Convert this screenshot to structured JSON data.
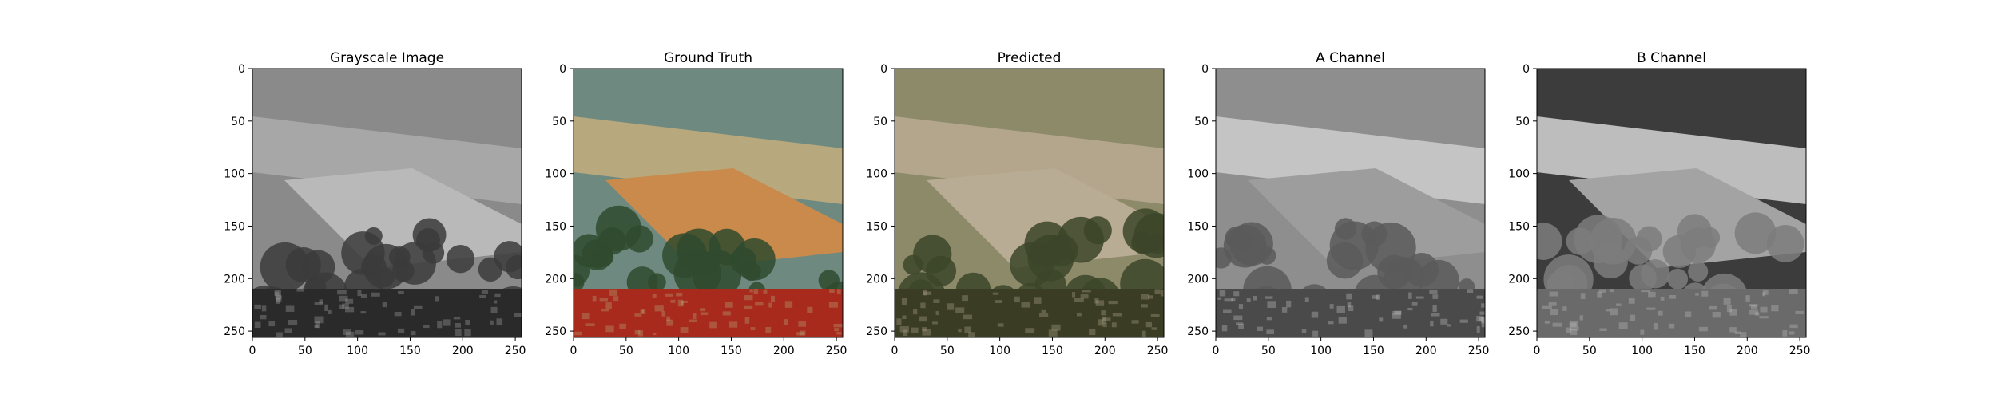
{
  "figure": {
    "background": "#ffffff",
    "panel_titles": [
      "Grayscale Image",
      "Ground Truth",
      "Predicted",
      "A Channel",
      "B Channel"
    ]
  },
  "chart_data": [
    {
      "type": "image",
      "title": "Grayscale Image",
      "xlabel": "",
      "ylabel": "",
      "xlim": [
        0,
        256
      ],
      "ylim": [
        256,
        0
      ],
      "xticks": [
        0,
        50,
        100,
        150,
        200,
        250
      ],
      "yticks": [
        0,
        50,
        100,
        150,
        200,
        250
      ],
      "content": "grayscale photo of a vineyard hillside",
      "colors": {
        "sky": "#8a8a8a",
        "hill": "#a7a7a7",
        "field": "#b9b9b9",
        "trees": "#3b3b3b",
        "foreground": "#2a2a2a"
      }
    },
    {
      "type": "image",
      "title": "Ground Truth",
      "xlabel": "",
      "ylabel": "",
      "xlim": [
        0,
        256
      ],
      "ylim": [
        256,
        0
      ],
      "xticks": [
        0,
        50,
        100,
        150,
        200,
        250
      ],
      "yticks": [
        0,
        50,
        100,
        150,
        200,
        250
      ],
      "content": "color photo of a vineyard hillside with red autumn vines",
      "colors": {
        "sky": "#6e8a80",
        "hill": "#b7a87e",
        "field": "#c98a4b",
        "trees": "#2f4a2e",
        "foreground": "#a82a1c"
      }
    },
    {
      "type": "image",
      "title": "Predicted",
      "xlabel": "",
      "ylabel": "",
      "xlim": [
        0,
        256
      ],
      "ylim": [
        256,
        0
      ],
      "xticks": [
        0,
        50,
        100,
        150,
        200,
        250
      ],
      "yticks": [
        0,
        50,
        100,
        150,
        200,
        250
      ],
      "content": "predicted colorization of the vineyard photo, muted sepia-green tones",
      "colors": {
        "sky": "#8d8a6a",
        "hill": "#b3a68c",
        "field": "#b8ac94",
        "trees": "#3c4529",
        "foreground": "#3a3d24"
      }
    },
    {
      "type": "image",
      "title": "A Channel",
      "xlabel": "",
      "ylabel": "",
      "xlim": [
        0,
        256
      ],
      "ylim": [
        256,
        0
      ],
      "xticks": [
        0,
        50,
        100,
        150,
        200,
        250
      ],
      "yticks": [
        0,
        50,
        100,
        150,
        200,
        250
      ],
      "content": "grayscale map of the predicted A chroma channel",
      "colors": {
        "sky": "#8e8e8e",
        "hill": "#c4c4c4",
        "field": "#9d9d9d",
        "trees": "#5a5a5a",
        "foreground": "#4a4a4a"
      }
    },
    {
      "type": "image",
      "title": "B Channel",
      "xlabel": "",
      "ylabel": "",
      "xlim": [
        0,
        256
      ],
      "ylim": [
        256,
        0
      ],
      "xticks": [
        0,
        50,
        100,
        150,
        200,
        250
      ],
      "yticks": [
        0,
        50,
        100,
        150,
        200,
        250
      ],
      "content": "grayscale map of the predicted B chroma channel",
      "colors": {
        "sky": "#3c3c3c",
        "hill": "#bdbdbd",
        "field": "#a3a3a3",
        "trees": "#7d7d7d",
        "foreground": "#6a6a6a"
      }
    }
  ]
}
